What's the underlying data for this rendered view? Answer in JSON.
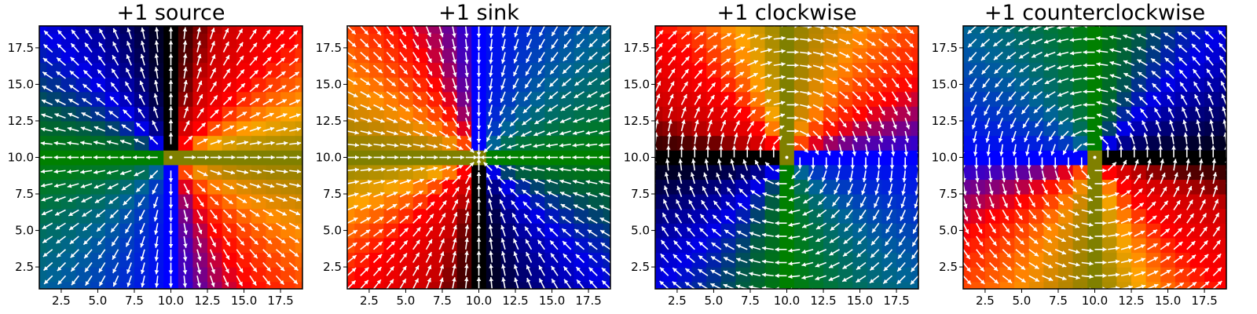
{
  "figure": {
    "panels": [
      {
        "title": "+1 source",
        "field": "source"
      },
      {
        "title": "+1 sink",
        "field": "sink"
      },
      {
        "title": "+1 clockwise",
        "field": "clockwise"
      },
      {
        "title": "+1 counterclockwise",
        "field": "counterclockwise"
      }
    ]
  },
  "chart_data": [
    {
      "type": "heatmap",
      "title": "+1 source",
      "xlabel": "",
      "ylabel": "",
      "xlim": [
        1,
        19
      ],
      "ylim": [
        1,
        19
      ],
      "xticks": [
        "2.5",
        "5.0",
        "7.5",
        "10.0",
        "12.5",
        "15.0",
        "17.5"
      ],
      "yticks": [
        "2.5",
        "5.0",
        "7.5",
        "10.0",
        "12.5",
        "15.0",
        "17.5"
      ],
      "grid": false,
      "center": [
        10,
        10
      ],
      "field": {
        "description": "vector field with color by arrow direction angle",
        "vx": "x - 10",
        "vy": "y - 10"
      },
      "overlay": "quiver (white arrows)",
      "colormap": "direction angle: 0=yellow, 90=black, 180=green, 270=blue"
    },
    {
      "type": "heatmap",
      "title": "+1 sink",
      "xlabel": "",
      "ylabel": "",
      "xlim": [
        1,
        19
      ],
      "ylim": [
        1,
        19
      ],
      "xticks": [
        "2.5",
        "5.0",
        "7.5",
        "10.0",
        "12.5",
        "15.0",
        "17.5"
      ],
      "yticks": [
        "2.5",
        "5.0",
        "7.5",
        "10.0",
        "12.5",
        "15.0",
        "17.5"
      ],
      "grid": false,
      "center": [
        10,
        10
      ],
      "field": {
        "vx": "10 - x",
        "vy": "10 - y"
      },
      "overlay": "quiver (white arrows)",
      "colormap": "direction angle: 0=yellow, 90=black, 180=green, 270=blue"
    },
    {
      "type": "heatmap",
      "title": "+1 clockwise",
      "xlabel": "",
      "ylabel": "",
      "xlim": [
        1,
        19
      ],
      "ylim": [
        1,
        19
      ],
      "xticks": [
        "2.5",
        "5.0",
        "7.5",
        "10.0",
        "12.5",
        "15.0",
        "17.5"
      ],
      "yticks": [
        "2.5",
        "5.0",
        "7.5",
        "10.0",
        "12.5",
        "15.0",
        "17.5"
      ],
      "grid": false,
      "center": [
        10,
        10
      ],
      "field": {
        "vx": "y - 10",
        "vy": "10 - x"
      },
      "overlay": "quiver (white arrows)",
      "colormap": "direction angle: 0=yellow, 90=black, 180=green, 270=blue"
    },
    {
      "type": "heatmap",
      "title": "+1 counterclockwise",
      "xlabel": "",
      "ylabel": "",
      "xlim": [
        1,
        19
      ],
      "ylim": [
        1,
        19
      ],
      "xticks": [
        "2.5",
        "5.0",
        "7.5",
        "10.0",
        "12.5",
        "15.0",
        "17.5"
      ],
      "yticks": [
        "2.5",
        "5.0",
        "7.5",
        "10.0",
        "12.5",
        "15.0",
        "17.5"
      ],
      "grid": false,
      "center": [
        10,
        10
      ],
      "field": {
        "vx": "10 - y",
        "vy": "x - 10"
      },
      "overlay": "quiver (white arrows)",
      "colormap": "direction angle: 0=yellow, 90=black, 180=green, 270=blue"
    }
  ],
  "colors": {
    "arrows": "#ffffff",
    "axes": "#000000",
    "angle_0": "#808000",
    "angle_90": "#000000",
    "angle_180": "#008000",
    "angle_270": "#0000ff"
  }
}
